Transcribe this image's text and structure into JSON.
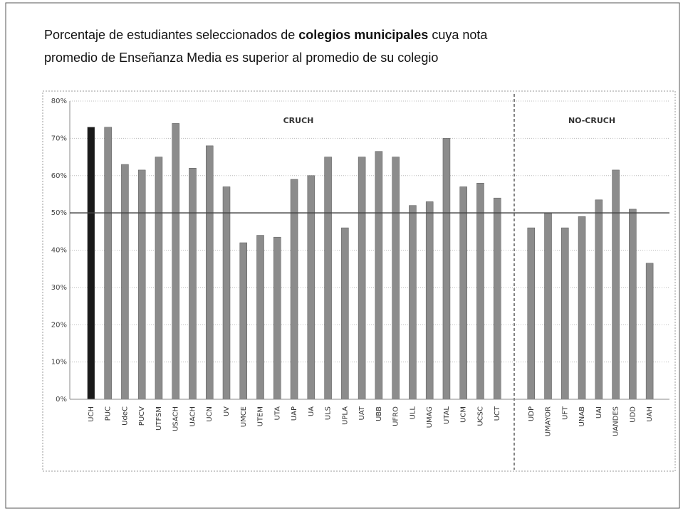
{
  "chart_data": {
    "type": "bar",
    "title_lines": [
      [
        "Porcentaje de estudiantes seleccionados de ",
        "colegios municipales",
        " cuya nota"
      ],
      [
        "promedio de Enseñanza Media es superior al promedio de su colegio"
      ]
    ],
    "title_bold_segment": [
      0,
      1
    ],
    "annotations": [
      "CRUCH",
      "NO-CRUCH"
    ],
    "categories": [
      "UCH",
      "PUC",
      "UdeC",
      "PUCV",
      "UTFSM",
      "USACH",
      "UACH",
      "UCN",
      "UV",
      "UMCE",
      "UTEM",
      "UTA",
      "UAP",
      "UA",
      "ULS",
      "UPLA",
      "UAT",
      "UBB",
      "UFRO",
      "ULL",
      "UMAG",
      "UTAL",
      "UCM",
      "UCSC",
      "UCT",
      null,
      "UDP",
      "UMAYOR",
      "UFT",
      "UNAB",
      "UAI",
      "UANDES",
      "UDD",
      "UAH"
    ],
    "values": [
      73,
      73,
      63,
      61.5,
      65,
      74,
      62,
      68,
      57,
      42,
      44,
      43.5,
      59,
      60,
      65,
      46,
      65,
      66.5,
      65,
      52,
      53,
      70,
      57,
      58,
      54,
      null,
      46,
      50,
      46,
      49,
      53.5,
      61.5,
      51,
      36.5
    ],
    "color": "#8c8c8c",
    "highlight": {
      "category": "UCH",
      "color": "#1a1a1a"
    },
    "reference_line": 50,
    "ylim": [
      0,
      80
    ],
    "yticks": [
      {
        "value": 0,
        "label": "0%"
      },
      {
        "value": 10,
        "label": "10%"
      },
      {
        "value": 20,
        "label": "20%"
      },
      {
        "value": 30,
        "label": "30%"
      },
      {
        "value": 40,
        "label": "40%"
      },
      {
        "value": 50,
        "label": "50%"
      },
      {
        "value": 60,
        "label": "60%"
      },
      {
        "value": 70,
        "label": "70%"
      },
      {
        "value": 80,
        "label": "80%"
      }
    ],
    "grid": true
  }
}
